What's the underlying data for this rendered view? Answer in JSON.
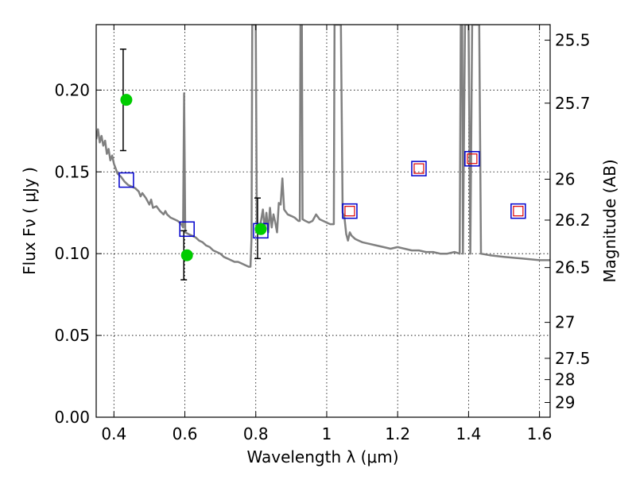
{
  "chart_data": {
    "type": "scatter",
    "xlabel": "Wavelength  λ (μm)",
    "ylabel": "Flux  Fν ( μJy )",
    "y2label": "Magnitude (AB)",
    "xlim": [
      0.35,
      1.63
    ],
    "ylim": [
      0.0,
      0.24
    ],
    "grid": true,
    "x_ticks": [
      0.4,
      0.6,
      0.8,
      1.0,
      1.2,
      1.4,
      1.6
    ],
    "x_tick_labels": [
      "0.4",
      "0.6",
      "0.8",
      "1",
      "1.2",
      "1.4",
      "1.6"
    ],
    "y_ticks": [
      0.0,
      0.05,
      0.1,
      0.15,
      0.2
    ],
    "y_tick_labels": [
      "0.00",
      "0.05",
      "0.10",
      "0.15",
      "0.20"
    ],
    "mag_ticks": [
      {
        "flux": 0.2305,
        "label": "25.5"
      },
      {
        "flux": 0.192,
        "label": "25.7"
      },
      {
        "flux": 0.1455,
        "label": "26"
      },
      {
        "flux": 0.1205,
        "label": "26.2"
      },
      {
        "flux": 0.0915,
        "label": "26.5"
      },
      {
        "flux": 0.058,
        "label": "27"
      },
      {
        "flux": 0.036,
        "label": "27.5"
      },
      {
        "flux": 0.023,
        "label": "28"
      },
      {
        "flux": 0.009,
        "label": "29"
      }
    ],
    "template_spectrum": {
      "name": "",
      "color": "#808080",
      "points": [
        [
          0.35,
          0.17
        ],
        [
          0.355,
          0.176
        ],
        [
          0.36,
          0.168
        ],
        [
          0.365,
          0.172
        ],
        [
          0.37,
          0.166
        ],
        [
          0.375,
          0.169
        ],
        [
          0.38,
          0.161
        ],
        [
          0.385,
          0.164
        ],
        [
          0.39,
          0.157
        ],
        [
          0.395,
          0.16
        ],
        [
          0.4,
          0.155
        ],
        [
          0.405,
          0.152
        ],
        [
          0.41,
          0.149
        ],
        [
          0.42,
          0.147
        ],
        [
          0.43,
          0.144
        ],
        [
          0.44,
          0.142
        ],
        [
          0.45,
          0.141
        ],
        [
          0.46,
          0.14
        ],
        [
          0.47,
          0.138
        ],
        [
          0.475,
          0.135
        ],
        [
          0.48,
          0.137
        ],
        [
          0.49,
          0.134
        ],
        [
          0.5,
          0.13
        ],
        [
          0.505,
          0.133
        ],
        [
          0.51,
          0.128
        ],
        [
          0.52,
          0.129
        ],
        [
          0.53,
          0.126
        ],
        [
          0.54,
          0.124
        ],
        [
          0.545,
          0.126
        ],
        [
          0.55,
          0.124
        ],
        [
          0.56,
          0.122
        ],
        [
          0.57,
          0.121
        ],
        [
          0.58,
          0.12
        ],
        [
          0.59,
          0.118
        ],
        [
          0.595,
          0.116
        ],
        [
          0.598,
          0.198
        ],
        [
          0.601,
          0.113
        ],
        [
          0.61,
          0.112
        ],
        [
          0.62,
          0.111
        ],
        [
          0.63,
          0.11
        ],
        [
          0.64,
          0.108
        ],
        [
          0.65,
          0.107
        ],
        [
          0.66,
          0.105
        ],
        [
          0.67,
          0.104
        ],
        [
          0.68,
          0.102
        ],
        [
          0.69,
          0.101
        ],
        [
          0.7,
          0.1
        ],
        [
          0.71,
          0.098
        ],
        [
          0.72,
          0.097
        ],
        [
          0.73,
          0.096
        ],
        [
          0.74,
          0.095
        ],
        [
          0.75,
          0.095
        ],
        [
          0.76,
          0.094
        ],
        [
          0.77,
          0.093
        ],
        [
          0.78,
          0.092
        ],
        [
          0.785,
          0.092
        ],
        [
          0.788,
          0.11
        ],
        [
          0.79,
          0.24
        ],
        [
          0.8,
          0.24
        ],
        [
          0.803,
          0.117
        ],
        [
          0.805,
          0.118
        ],
        [
          0.81,
          0.114
        ],
        [
          0.82,
          0.127
        ],
        [
          0.825,
          0.115
        ],
        [
          0.83,
          0.125
        ],
        [
          0.835,
          0.113
        ],
        [
          0.84,
          0.128
        ],
        [
          0.845,
          0.116
        ],
        [
          0.85,
          0.124
        ],
        [
          0.855,
          0.119
        ],
        [
          0.86,
          0.113
        ],
        [
          0.865,
          0.131
        ],
        [
          0.87,
          0.13
        ],
        [
          0.875,
          0.146
        ],
        [
          0.88,
          0.127
        ],
        [
          0.89,
          0.124
        ],
        [
          0.9,
          0.123
        ],
        [
          0.91,
          0.122
        ],
        [
          0.92,
          0.12
        ],
        [
          0.924,
          0.12
        ],
        [
          0.926,
          0.24
        ],
        [
          0.93,
          0.24
        ],
        [
          0.932,
          0.121
        ],
        [
          0.94,
          0.12
        ],
        [
          0.95,
          0.119
        ],
        [
          0.96,
          0.12
        ],
        [
          0.97,
          0.124
        ],
        [
          0.98,
          0.121
        ],
        [
          0.99,
          0.12
        ],
        [
          1.0,
          0.119
        ],
        [
          1.01,
          0.118
        ],
        [
          1.02,
          0.118
        ],
        [
          1.022,
          0.24
        ],
        [
          1.04,
          0.24
        ],
        [
          1.045,
          0.125
        ],
        [
          1.05,
          0.122
        ],
        [
          1.055,
          0.112
        ],
        [
          1.06,
          0.108
        ],
        [
          1.065,
          0.113
        ],
        [
          1.07,
          0.111
        ],
        [
          1.08,
          0.109
        ],
        [
          1.09,
          0.108
        ],
        [
          1.1,
          0.107
        ],
        [
          1.12,
          0.106
        ],
        [
          1.14,
          0.105
        ],
        [
          1.16,
          0.104
        ],
        [
          1.18,
          0.103
        ],
        [
          1.2,
          0.104
        ],
        [
          1.22,
          0.103
        ],
        [
          1.24,
          0.102
        ],
        [
          1.26,
          0.102
        ],
        [
          1.28,
          0.101
        ],
        [
          1.3,
          0.101
        ],
        [
          1.32,
          0.1
        ],
        [
          1.34,
          0.1
        ],
        [
          1.36,
          0.101
        ],
        [
          1.375,
          0.1
        ],
        [
          1.378,
          0.24
        ],
        [
          1.382,
          0.24
        ],
        [
          1.384,
          0.1
        ],
        [
          1.39,
          0.24
        ],
        [
          1.4,
          0.24
        ],
        [
          1.405,
          0.1
        ],
        [
          1.41,
          0.24
        ],
        [
          1.43,
          0.24
        ],
        [
          1.435,
          0.1
        ],
        [
          1.46,
          0.099
        ],
        [
          1.5,
          0.098
        ],
        [
          1.55,
          0.097
        ],
        [
          1.6,
          0.096
        ],
        [
          1.63,
          0.096
        ]
      ]
    },
    "series": [
      {
        "name": "",
        "marker": "circle",
        "color": "#00cc00",
        "points": [
          {
            "x": 0.435,
            "y": 0.194,
            "yerr_low": 0.163,
            "yerr_high": 0.225
          },
          {
            "x": 0.606,
            "y": 0.099,
            "yerr_low": 0.084,
            "yerr_high": 0.114
          },
          {
            "x": 0.814,
            "y": 0.115,
            "yerr_low": 0.097,
            "yerr_high": 0.134
          }
        ]
      },
      {
        "name": "",
        "marker": "square",
        "color": "#0000cc",
        "points": [
          {
            "x": 0.435,
            "y": 0.145
          },
          {
            "x": 0.606,
            "y": 0.115
          },
          {
            "x": 0.814,
            "y": 0.114
          },
          {
            "x": 1.065,
            "y": 0.126
          },
          {
            "x": 1.26,
            "y": 0.152
          },
          {
            "x": 1.41,
            "y": 0.158
          },
          {
            "x": 1.54,
            "y": 0.126
          }
        ]
      },
      {
        "name": "",
        "marker": "small-square",
        "color": "#dd0000",
        "points": [
          {
            "x": 1.065,
            "y": 0.126
          },
          {
            "x": 1.26,
            "y": 0.152
          },
          {
            "x": 1.41,
            "y": 0.158
          },
          {
            "x": 1.54,
            "y": 0.126
          }
        ]
      }
    ]
  }
}
